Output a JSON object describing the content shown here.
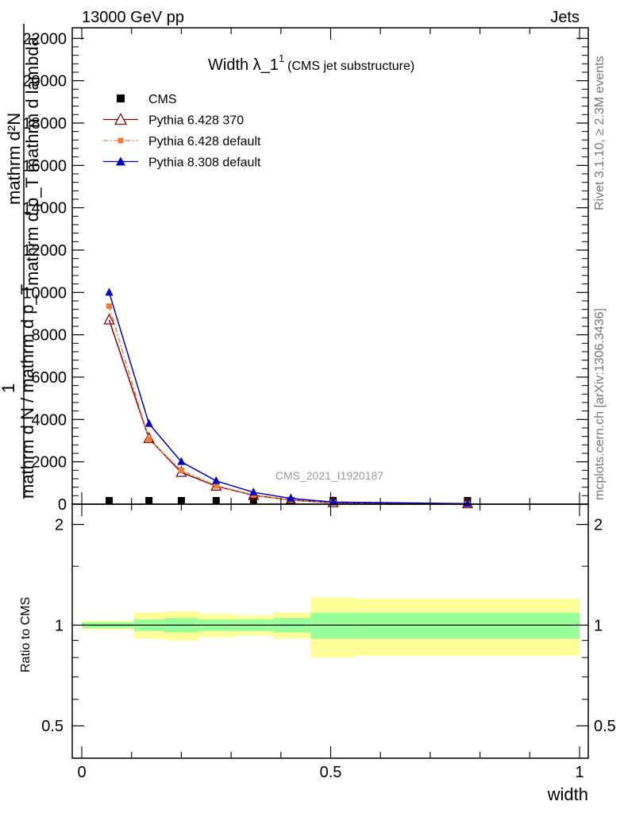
{
  "header": {
    "left": "13000 GeV pp",
    "right": "Jets"
  },
  "side_text": {
    "rivet": "Rivet 3.1.10, ≥ 2.3M events",
    "mcplots": "mcplots.cern.ch [arXiv:1306.3436]"
  },
  "watermark": "CMS_2021_I1920187",
  "chart_data": [
    {
      "type": "line",
      "title_main": "Width λ_1",
      "title_sup": "1",
      "title_sub": "(CMS jet substructure)",
      "ylabel_top": "mathrm d²N",
      "ylabel_mid": "mathrm d p_T mathrm d lambda",
      "ylabel_one": "1",
      "ylabel_bottom": "mathrm d N / mathrm d p_T",
      "xlim": [
        -0.01,
        1.01
      ],
      "ylim": [
        0,
        22500
      ],
      "yticks": [
        0,
        2000,
        4000,
        6000,
        8000,
        10000,
        12000,
        14000,
        16000,
        18000,
        20000,
        22000
      ],
      "ytick_labels": [
        "0",
        "2000",
        "4000",
        "6000",
        "8000",
        "10000",
        "12000",
        "14000",
        "16000",
        "18000",
        "20000",
        "22000"
      ],
      "legend_position": "top-left",
      "series": [
        {
          "name": "CMS",
          "color": "#000000",
          "marker": "square",
          "x": [
            0.055,
            0.135,
            0.2,
            0.27,
            0.345,
            0.42,
            0.505,
            0.775
          ],
          "y": [
            0,
            0,
            0,
            0,
            0,
            0,
            0,
            0
          ]
        },
        {
          "name": "Pythia 6.428 370",
          "color": "#8b0000",
          "marker": "open-triangle",
          "x": [
            0.055,
            0.135,
            0.2,
            0.27,
            0.345,
            0.42,
            0.505,
            0.775
          ],
          "y": [
            8700,
            3100,
            1500,
            850,
            420,
            190,
            70,
            20
          ]
        },
        {
          "name": "Pythia 6.428 default",
          "color": "#f07d3a",
          "marker": "small-square",
          "x": [
            0.055,
            0.135,
            0.2,
            0.27,
            0.345,
            0.42,
            0.505,
            0.775
          ],
          "y": [
            9350,
            3050,
            1600,
            870,
            430,
            200,
            75,
            20
          ]
        },
        {
          "name": "Pythia 8.308 default",
          "color": "#0000cc",
          "marker": "triangle",
          "x": [
            0.055,
            0.135,
            0.2,
            0.27,
            0.345,
            0.42,
            0.505,
            0.775
          ],
          "y": [
            10000,
            3800,
            2000,
            1100,
            560,
            270,
            100,
            25
          ]
        }
      ]
    },
    {
      "type": "area",
      "ylabel": "Ratio to CMS",
      "xlabel": "width",
      "xlim": [
        -0.01,
        1.01
      ],
      "ylim": [
        0.4,
        2.3
      ],
      "yticks": [
        0.5,
        1,
        2
      ],
      "ytick_labels": [
        "0.5",
        "1",
        "2"
      ],
      "xticks": [
        0,
        0.5,
        1
      ],
      "xtick_labels": [
        "0",
        "0.5",
        "1"
      ],
      "bins": [
        {
          "x0": 0.0,
          "x1": 0.105,
          "inner": [
            0.98,
            1.02
          ],
          "outer": [
            0.97,
            1.03
          ]
        },
        {
          "x0": 0.105,
          "x1": 0.165,
          "inner": [
            0.96,
            1.04
          ],
          "outer": [
            0.91,
            1.09
          ]
        },
        {
          "x0": 0.165,
          "x1": 0.235,
          "inner": [
            0.95,
            1.05
          ],
          "outer": [
            0.9,
            1.1
          ]
        },
        {
          "x0": 0.235,
          "x1": 0.31,
          "inner": [
            0.96,
            1.04
          ],
          "outer": [
            0.92,
            1.08
          ]
        },
        {
          "x0": 0.31,
          "x1": 0.385,
          "inner": [
            0.96,
            1.04
          ],
          "outer": [
            0.93,
            1.07
          ]
        },
        {
          "x0": 0.385,
          "x1": 0.46,
          "inner": [
            0.95,
            1.05
          ],
          "outer": [
            0.91,
            1.09
          ]
        },
        {
          "x0": 0.46,
          "x1": 0.55,
          "inner": [
            0.91,
            1.09
          ],
          "outer": [
            0.8,
            1.21
          ]
        },
        {
          "x0": 0.55,
          "x1": 1.0,
          "inner": [
            0.91,
            1.09
          ],
          "outer": [
            0.81,
            1.2
          ]
        }
      ],
      "inner_color": "#99ff99",
      "outer_color": "#ffff99"
    }
  ]
}
